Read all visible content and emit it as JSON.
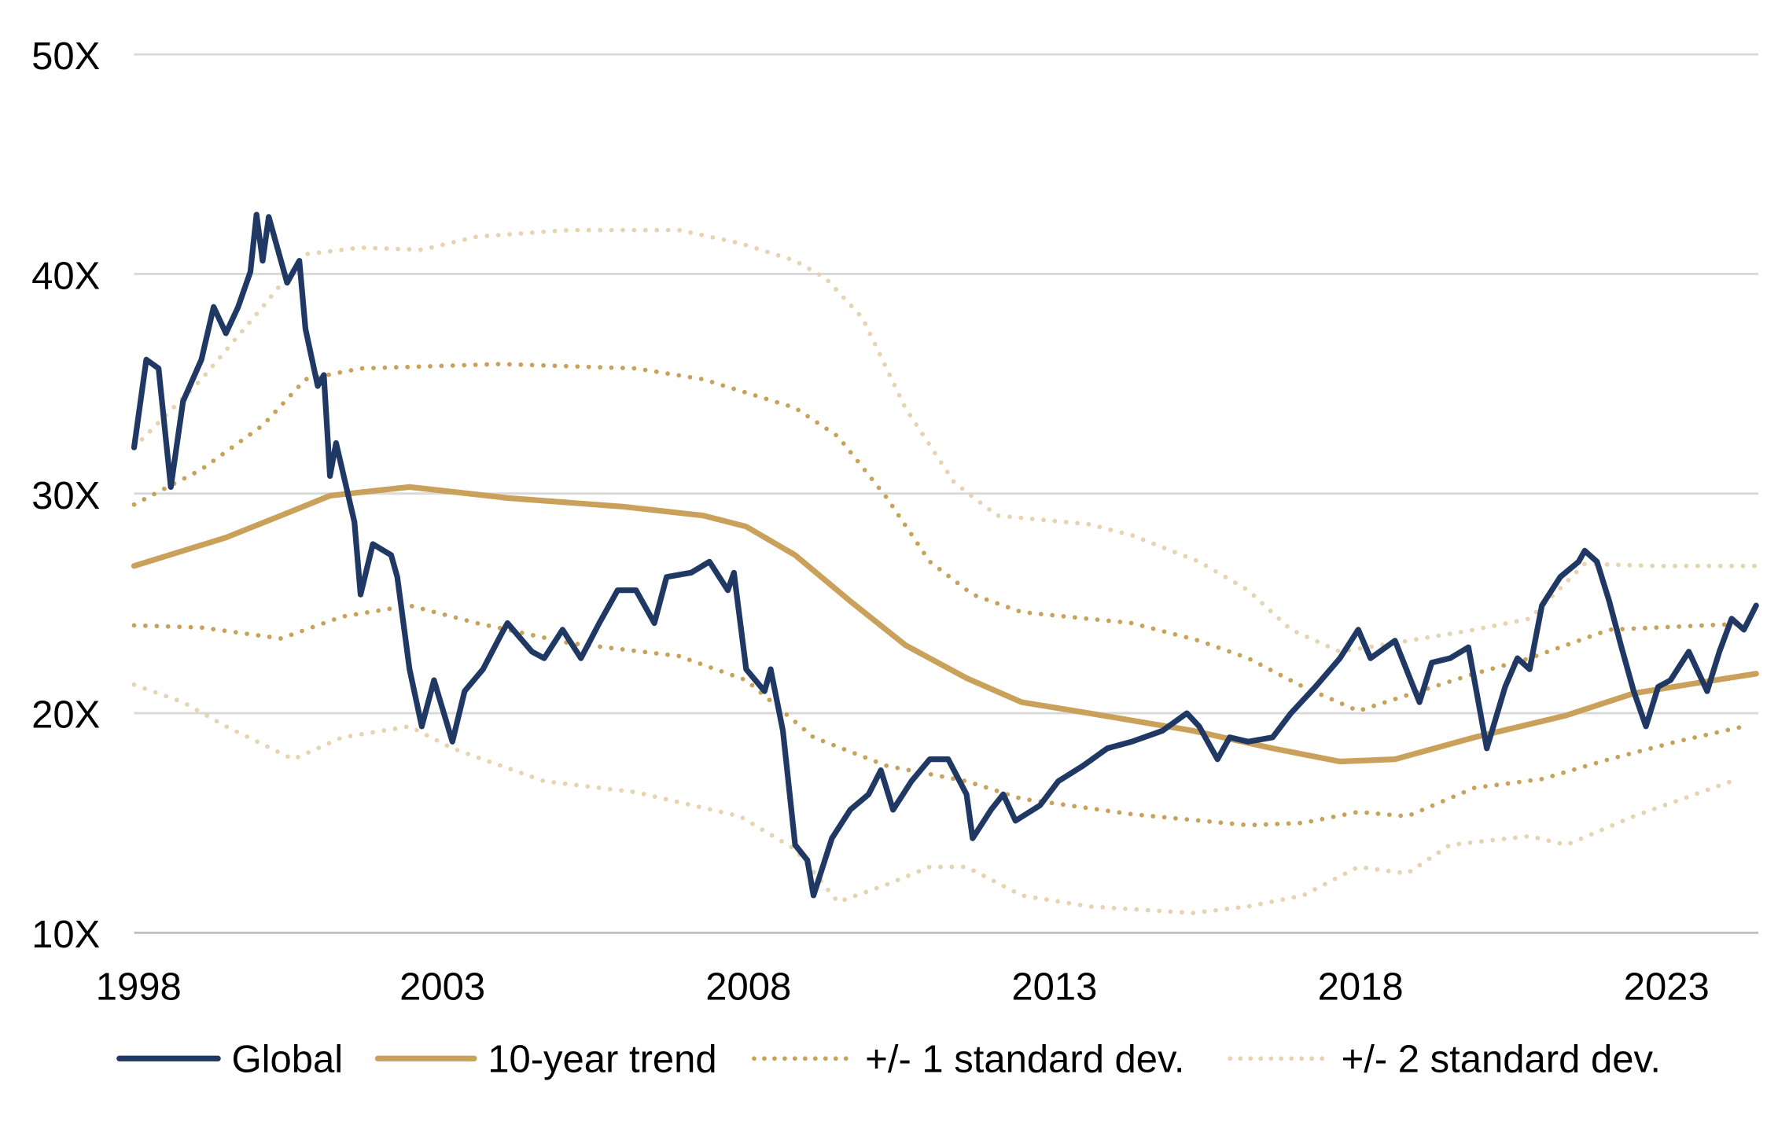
{
  "chart_data": {
    "type": "line",
    "title": "",
    "xlabel": "",
    "ylabel": "",
    "xlim": [
      1998,
      2024.5
    ],
    "ylim": [
      10,
      50
    ],
    "x_ticks": [
      "1998",
      "2003",
      "2008",
      "2013",
      "2018",
      "2023"
    ],
    "y_ticks": [
      "10X",
      "20X",
      "30X",
      "40X",
      "50X"
    ],
    "grid": "horizontal",
    "legend_position": "bottom",
    "series": [
      {
        "name": "Global",
        "color": "#1f3864",
        "style": "solid",
        "x": [
          1998.0,
          1998.2,
          1998.4,
          1998.6,
          1998.8,
          1999.1,
          1999.3,
          1999.5,
          1999.7,
          1999.9,
          2000.0,
          2000.1,
          2000.2,
          2000.5,
          2000.7,
          2000.8,
          2001.0,
          2001.1,
          2001.2,
          2001.3,
          2001.6,
          2001.7,
          2001.9,
          2002.2,
          2002.3,
          2002.5,
          2002.7,
          2002.9,
          2003.2,
          2003.4,
          2003.7,
          2004.0,
          2004.1,
          2004.5,
          2004.7,
          2005.0,
          2005.3,
          2005.6,
          2005.9,
          2006.2,
          2006.5,
          2006.7,
          2007.1,
          2007.4,
          2007.7,
          2007.8,
          2008.0,
          2008.3,
          2008.4,
          2008.6,
          2008.8,
          2009.0,
          2009.1,
          2009.4,
          2009.7,
          2010.0,
          2010.2,
          2010.4,
          2010.7,
          2011.0,
          2011.3,
          2011.6,
          2011.7,
          2012.0,
          2012.2,
          2012.4,
          2012.8,
          2013.1,
          2013.5,
          2013.9,
          2014.3,
          2014.8,
          2015.2,
          2015.4,
          2015.7,
          2015.9,
          2016.2,
          2016.6,
          2016.9,
          2017.3,
          2017.7,
          2018.0,
          2018.2,
          2018.6,
          2019.0,
          2019.2,
          2019.5,
          2019.8,
          2020.1,
          2020.4,
          2020.6,
          2020.8,
          2021.0,
          2021.3,
          2021.6,
          2021.7,
          2021.9,
          2022.1,
          2022.3,
          2022.5,
          2022.7,
          2022.9,
          2023.1,
          2023.4,
          2023.7,
          2023.9,
          2024.1,
          2024.3,
          2024.5
        ],
        "values": [
          32.1,
          36.1,
          35.7,
          30.3,
          34.2,
          36.1,
          38.5,
          37.3,
          38.5,
          40.1,
          42.7,
          40.6,
          42.6,
          39.6,
          40.6,
          37.5,
          34.9,
          35.4,
          30.8,
          32.3,
          28.7,
          25.4,
          27.7,
          27.2,
          26.2,
          22.0,
          19.4,
          21.5,
          18.7,
          21.0,
          22.0,
          23.6,
          24.1,
          22.8,
          22.5,
          23.8,
          22.5,
          24.1,
          25.6,
          25.6,
          24.1,
          26.2,
          26.4,
          26.9,
          25.6,
          26.4,
          22.0,
          21.0,
          22.0,
          19.2,
          14.0,
          13.3,
          11.7,
          14.3,
          15.6,
          16.3,
          17.4,
          15.6,
          16.9,
          17.9,
          17.9,
          16.3,
          14.3,
          15.6,
          16.3,
          15.1,
          15.8,
          16.9,
          17.6,
          18.4,
          18.7,
          19.2,
          20.0,
          19.4,
          17.9,
          18.9,
          18.7,
          18.9,
          20.0,
          21.2,
          22.5,
          23.8,
          22.5,
          23.3,
          20.5,
          22.3,
          22.5,
          23.0,
          18.4,
          21.2,
          22.5,
          22.0,
          24.9,
          26.2,
          26.9,
          27.4,
          26.9,
          25.1,
          23.0,
          21.0,
          19.4,
          21.2,
          21.5,
          22.8,
          21.0,
          22.8,
          24.3,
          23.8,
          24.9
        ]
      },
      {
        "name": "10-year trend",
        "color": "#c9a15a",
        "style": "solid",
        "x": [
          1998.0,
          1999.5,
          2000.4,
          2001.2,
          2002.5,
          2004.1,
          2006.0,
          2007.3,
          2008.0,
          2008.8,
          2009.7,
          2010.6,
          2011.6,
          2012.5,
          2013.6,
          2015.3,
          2016.6,
          2017.7,
          2018.6,
          2019.9,
          2021.4,
          2022.5,
          2023.6,
          2024.5
        ],
        "values": [
          26.7,
          28.0,
          29.0,
          29.9,
          30.3,
          29.8,
          29.4,
          29.0,
          28.5,
          27.2,
          25.1,
          23.1,
          21.6,
          20.5,
          20.0,
          19.2,
          18.4,
          17.8,
          17.9,
          18.9,
          19.9,
          20.9,
          21.4,
          21.8
        ]
      },
      {
        "name": "+/- 1 standard dev.",
        "color": "#c9a15a",
        "style": "dotted",
        "bands": [
          {
            "x": [
              1998.0,
              1999.1,
              2000.1,
              2000.8,
              2001.7,
              2004.0,
              2006.2,
              2007.3,
              2008.8,
              2009.5,
              2010.3,
              2011.0,
              2011.7,
              2012.5,
              2014.3,
              2015.4,
              2016.2,
              2017.1,
              2018.0,
              2019.0,
              2019.9,
              2020.8,
              2022.1,
              2024.5
            ],
            "values": [
              29.5,
              31.1,
              33.1,
              35.2,
              35.7,
              35.9,
              35.7,
              35.2,
              33.9,
              32.6,
              29.8,
              26.9,
              25.4,
              24.6,
              24.1,
              23.3,
              22.5,
              21.2,
              20.1,
              21.0,
              21.8,
              22.5,
              23.8,
              24.1
            ]
          },
          {
            "x": [
              1998.0,
              1999.1,
              2000.4,
              2001.4,
              2002.5,
              2003.6,
              2005.1,
              2006.9,
              2008.0,
              2009.1,
              2010.3,
              2011.6,
              2012.5,
              2014.3,
              2016.2,
              2017.1,
              2018.0,
              2018.8,
              2019.9,
              2021.0,
              2022.1,
              2023.2,
              2024.3
            ],
            "values": [
              24.0,
              23.9,
              23.4,
              24.4,
              24.9,
              24.1,
              23.2,
              22.6,
              21.5,
              18.9,
              17.6,
              16.9,
              16.1,
              15.4,
              14.9,
              15.0,
              15.5,
              15.3,
              16.6,
              17.0,
              17.9,
              18.7,
              19.4
            ]
          }
        ]
      },
      {
        "name": "+/- 2 standard dev.",
        "color": "#e6d3b0",
        "style": "dotted",
        "bands": [
          {
            "x": [
              1998.0,
              1999.1,
              2000.1,
              2000.8,
              2001.7,
              2002.7,
              2003.6,
              2005.1,
              2006.9,
              2007.9,
              2008.8,
              2009.3,
              2009.9,
              2010.6,
              2011.4,
              2012.1,
              2013.6,
              2014.3,
              2015.4,
              2016.2,
              2016.9,
              2017.7,
              2018.6,
              2019.9,
              2020.8,
              2021.7,
              2022.9,
              2024.5
            ],
            "values": [
              32.1,
              35.2,
              38.5,
              40.9,
              41.2,
              41.1,
              41.7,
              42.0,
              42.0,
              41.4,
              40.6,
              39.8,
              38.0,
              33.9,
              30.5,
              29.0,
              28.6,
              28.1,
              26.9,
              25.6,
              23.8,
              22.8,
              23.2,
              23.8,
              24.3,
              26.8,
              26.7,
              26.7
            ]
          },
          {
            "x": [
              1998.0,
              1998.8,
              1999.5,
              2000.6,
              2001.4,
              2002.5,
              2003.2,
              2004.7,
              2006.2,
              2007.9,
              2008.8,
              2009.5,
              2010.3,
              2011.0,
              2011.6,
              2012.5,
              2013.6,
              2015.3,
              2016.2,
              2017.1,
              2018.0,
              2018.8,
              2019.5,
              2020.8,
              2021.4,
              2022.5,
              2023.6,
              2024.1
            ],
            "values": [
              21.3,
              20.5,
              19.4,
              17.9,
              18.9,
              19.4,
              18.4,
              16.9,
              16.4,
              15.3,
              13.8,
              11.4,
              12.2,
              13.0,
              13.0,
              11.7,
              11.2,
              10.9,
              11.2,
              11.7,
              13.0,
              12.7,
              14.0,
              14.4,
              14.0,
              15.3,
              16.4,
              16.9
            ]
          }
        ]
      }
    ]
  }
}
